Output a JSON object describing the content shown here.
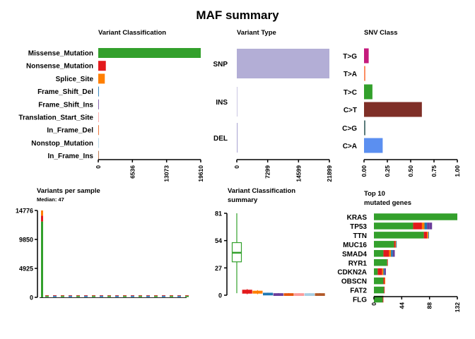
{
  "title": "MAF summary",
  "colors": {
    "Missense_Mutation": "#33a02c",
    "Nonsense_Mutation": "#e31a1c",
    "Splice_Site": "#ff7f00",
    "Frame_Shift_Del": "#1f78b4",
    "Frame_Shift_Ins": "#6a3d9a",
    "Translation_Start_Site": "#fb9a99",
    "In_Frame_Del": "#e6550d",
    "Nonstop_Mutation": "#a6cee3",
    "In_Frame_Ins": "#b15928",
    "Multi_Hit": "#6a3d9a",
    "variant_type": "#b3aed6"
  },
  "chart_data": [
    {
      "id": "variant_classification",
      "type": "bar",
      "title": "Variant Classification",
      "orientation": "horizontal",
      "categories": [
        "Missense_Mutation",
        "Nonsense_Mutation",
        "Splice_Site",
        "Frame_Shift_Del",
        "Frame_Shift_Ins",
        "Translation_Start_Site",
        "In_Frame_Del",
        "Nonstop_Mutation",
        "In_Frame_Ins"
      ],
      "values": [
        19610,
        1450,
        1250,
        120,
        90,
        60,
        55,
        10,
        5
      ],
      "xlim": [
        0,
        19610
      ],
      "xticks": [
        "0",
        "6536",
        "13073",
        "19610"
      ],
      "xtick_values": [
        0,
        6536,
        13073,
        19610
      ]
    },
    {
      "id": "variant_type",
      "type": "bar",
      "title": "Variant Type",
      "orientation": "horizontal",
      "categories": [
        "SNP",
        "INS",
        "DEL"
      ],
      "values": [
        21899,
        20,
        200
      ],
      "xlim": [
        0,
        21899
      ],
      "xticks": [
        "0",
        "7299",
        "14599",
        "21899"
      ],
      "xtick_values": [
        0,
        7299,
        14599,
        21899
      ]
    },
    {
      "id": "snv_class",
      "type": "bar",
      "title": "SNV Class",
      "orientation": "horizontal",
      "categories": [
        "T>G",
        "T>A",
        "T>C",
        "C>T",
        "C>G",
        "C>A"
      ],
      "values": [
        0.05,
        0.015,
        0.09,
        0.62,
        0.015,
        0.2
      ],
      "colors": [
        "#c51b7d",
        "#fc8d62",
        "#33a02c",
        "#7f2f27",
        "#5a7a7a",
        "#5b8ff0"
      ],
      "xlim": [
        0,
        1
      ],
      "xticks": [
        "0.00",
        "0.25",
        "0.50",
        "0.75",
        "1.00"
      ],
      "xtick_values": [
        0,
        0.25,
        0.5,
        0.75,
        1
      ]
    },
    {
      "id": "variants_per_sample",
      "type": "bar",
      "title": "Variants per sample",
      "subtitle": "Median: 47",
      "ylim": [
        0,
        14776
      ],
      "yticks": [
        "0",
        "4925",
        "9850",
        "14776"
      ],
      "ytick_values": [
        0,
        4925,
        9850,
        14776
      ],
      "samples": [
        {
          "Missense_Mutation": 12900,
          "Nonsense_Mutation": 1000,
          "Splice_Site": 876
        },
        {
          "Missense_Mutation": 90,
          "Nonsense_Mutation": 8
        },
        {
          "Missense_Mutation": 70,
          "Nonsense_Mutation": 6
        },
        {
          "Missense_Mutation": 60,
          "Nonsense_Mutation": 5
        },
        {
          "Missense_Mutation": 55,
          "Nonsense_Mutation": 5
        },
        {
          "Missense_Mutation": 50,
          "Nonsense_Mutation": 4
        },
        {
          "Missense_Mutation": 48,
          "Nonsense_Mutation": 4
        },
        {
          "Missense_Mutation": 45,
          "Nonsense_Mutation": 4
        },
        {
          "Missense_Mutation": 42,
          "Nonsense_Mutation": 3
        },
        {
          "Missense_Mutation": 40,
          "Nonsense_Mutation": 3
        },
        {
          "Missense_Mutation": 38,
          "Nonsense_Mutation": 3
        },
        {
          "Missense_Mutation": 36,
          "Nonsense_Mutation": 3
        },
        {
          "Missense_Mutation": 34,
          "Nonsense_Mutation": 2
        },
        {
          "Missense_Mutation": 32,
          "Nonsense_Mutation": 2
        },
        {
          "Missense_Mutation": 30,
          "Nonsense_Mutation": 2
        },
        {
          "Missense_Mutation": 28,
          "Nonsense_Mutation": 2
        },
        {
          "Missense_Mutation": 26,
          "Nonsense_Mutation": 2
        },
        {
          "Missense_Mutation": 24,
          "Nonsense_Mutation": 2
        },
        {
          "Missense_Mutation": 22,
          "Nonsense_Mutation": 2
        },
        {
          "Missense_Mutation": 20,
          "Nonsense_Mutation": 2
        }
      ]
    },
    {
      "id": "variant_classification_summary",
      "type": "boxplot",
      "title": "Variant Classification\nsummary",
      "ylim": [
        0,
        81
      ],
      "yticks": [
        "0",
        "27",
        "54",
        "81"
      ],
      "ytick_values": [
        0,
        27,
        54,
        81
      ],
      "boxes": [
        {
          "name": "Missense_Mutation",
          "min": 2,
          "q1": 33,
          "median": 42,
          "q3": 52,
          "max": 81
        },
        {
          "name": "Nonsense_Mutation",
          "min": 1,
          "q1": 2,
          "median": 3,
          "q3": 5,
          "max": 6
        },
        {
          "name": "Splice_Site",
          "min": 1,
          "q1": 2,
          "median": 3,
          "q3": 4,
          "max": 5
        },
        {
          "name": "Frame_Shift_Del",
          "min": 0,
          "q1": 1,
          "median": 1.5,
          "q3": 2,
          "max": 2.5
        },
        {
          "name": "Frame_Shift_Ins",
          "min": 0,
          "q1": 0.5,
          "median": 1,
          "q3": 1.5,
          "max": 2
        },
        {
          "name": "In_Frame_Del",
          "min": 0,
          "q1": 0.5,
          "median": 1,
          "q3": 1.5,
          "max": 2
        },
        {
          "name": "Translation_Start_Site",
          "min": 0,
          "q1": 0.5,
          "median": 1,
          "q3": 1.5,
          "max": 2
        },
        {
          "name": "Nonstop_Mutation",
          "min": 0,
          "q1": 0.5,
          "median": 1,
          "q3": 1.5,
          "max": 2
        },
        {
          "name": "In_Frame_Ins",
          "min": 0,
          "q1": 0.5,
          "median": 1,
          "q3": 1.5,
          "max": 2
        }
      ]
    },
    {
      "id": "top10_mutated_genes",
      "type": "bar",
      "title": "Top 10\nmutated genes",
      "orientation": "horizontal",
      "stacked": true,
      "xlim": [
        0,
        132
      ],
      "xticks": [
        "0",
        "44",
        "88",
        "132"
      ],
      "xtick_values": [
        0,
        44,
        88,
        132
      ],
      "genes": [
        {
          "name": "KRAS",
          "segments": [
            [
              "Missense_Mutation",
              132
            ]
          ]
        },
        {
          "name": "TP53",
          "segments": [
            [
              "Missense_Mutation",
              62
            ],
            [
              "Nonsense_Mutation",
              14
            ],
            [
              "Splice_Site",
              4
            ],
            [
              "Frame_Shift_Del",
              4
            ],
            [
              "Frame_Shift_Ins",
              4
            ],
            [
              "Multi_Hit",
              4
            ]
          ]
        },
        {
          "name": "TTN",
          "segments": [
            [
              "Missense_Mutation",
              79
            ],
            [
              "Nonsense_Mutation",
              5
            ],
            [
              "Splice_Site",
              2
            ],
            [
              "Frame_Shift_Del",
              1
            ]
          ]
        },
        {
          "name": "MUC16",
          "segments": [
            [
              "Missense_Mutation",
              32
            ],
            [
              "Nonsense_Mutation",
              2
            ],
            [
              "Splice_Site",
              1
            ],
            [
              "Frame_Shift_Del",
              1
            ]
          ]
        },
        {
          "name": "SMAD4",
          "segments": [
            [
              "Missense_Mutation",
              15
            ],
            [
              "Nonsense_Mutation",
              9
            ],
            [
              "Splice_Site",
              3
            ],
            [
              "Frame_Shift_Del",
              3
            ],
            [
              "Multi_Hit",
              3
            ]
          ]
        },
        {
          "name": "RYR1",
          "segments": [
            [
              "Missense_Mutation",
              21
            ],
            [
              "Nonsense_Mutation",
              1
            ]
          ]
        },
        {
          "name": "CDKN2A",
          "segments": [
            [
              "Missense_Mutation",
              6
            ],
            [
              "Nonsense_Mutation",
              7
            ],
            [
              "Splice_Site",
              2
            ],
            [
              "Frame_Shift_Del",
              2
            ],
            [
              "Frame_Shift_Ins",
              2
            ]
          ]
        },
        {
          "name": "OBSCN",
          "segments": [
            [
              "Missense_Mutation",
              15
            ],
            [
              "Nonsense_Mutation",
              2
            ],
            [
              "Splice_Site",
              1
            ]
          ]
        },
        {
          "name": "FAT2",
          "segments": [
            [
              "Missense_Mutation",
              16
            ],
            [
              "Nonsense_Mutation",
              1
            ]
          ]
        },
        {
          "name": "FLG",
          "segments": [
            [
              "Missense_Mutation",
              14
            ],
            [
              "Nonsense_Mutation",
              1
            ]
          ]
        }
      ]
    }
  ]
}
